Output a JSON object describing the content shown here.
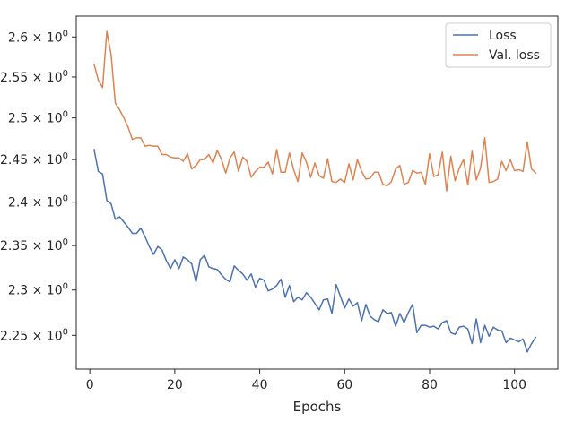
{
  "chart_data": {
    "type": "line",
    "xlabel": "Epochs",
    "ylabel": "",
    "yscale": "log",
    "xlim": [
      -3.2,
      110.2
    ],
    "ylim": [
      2.2135,
      2.6264
    ],
    "grid": false,
    "legend_placement": "top-right",
    "x_ticks": [
      0,
      20,
      40,
      60,
      80,
      100
    ],
    "x_tick_labels": [
      "0",
      "20",
      "40",
      "60",
      "80",
      "100"
    ],
    "y_ticks": [
      2.25,
      2.3,
      2.35,
      2.4,
      2.45,
      2.5,
      2.55,
      2.6
    ],
    "y_tick_labels": [
      {
        "mantissa": "2.25",
        "base": "10",
        "exp": "0"
      },
      {
        "mantissa": "2.3",
        "base": "10",
        "exp": "0"
      },
      {
        "mantissa": "2.35",
        "base": "10",
        "exp": "0"
      },
      {
        "mantissa": "2.4",
        "base": "10",
        "exp": "0"
      },
      {
        "mantissa": "2.45",
        "base": "10",
        "exp": "0"
      },
      {
        "mantissa": "2.5",
        "base": "10",
        "exp": "0"
      },
      {
        "mantissa": "2.55",
        "base": "10",
        "exp": "0"
      },
      {
        "mantissa": "2.6",
        "base": "10",
        "exp": "0"
      }
    ],
    "series": [
      {
        "name": "Loss",
        "color": "#4c72b0",
        "start_x": 1,
        "values": [
          2.462,
          2.436,
          2.433,
          2.402,
          2.398,
          2.38,
          2.383,
          2.377,
          2.371,
          2.364,
          2.364,
          2.37,
          2.36,
          2.349,
          2.34,
          2.349,
          2.345,
          2.333,
          2.324,
          2.334,
          2.324,
          2.337,
          2.334,
          2.329,
          2.309,
          2.334,
          2.339,
          2.326,
          2.324,
          2.323,
          2.317,
          2.312,
          2.309,
          2.327,
          2.322,
          2.318,
          2.311,
          2.318,
          2.303,
          2.313,
          2.311,
          2.299,
          2.301,
          2.305,
          2.312,
          2.292,
          2.305,
          2.287,
          2.292,
          2.289,
          2.297,
          2.292,
          2.285,
          2.278,
          2.289,
          2.29,
          2.274,
          2.306,
          2.293,
          2.28,
          2.29,
          2.282,
          2.286,
          2.266,
          2.284,
          2.271,
          2.267,
          2.265,
          2.278,
          2.274,
          2.275,
          2.26,
          2.274,
          2.264,
          2.275,
          2.284,
          2.253,
          2.261,
          2.261,
          2.259,
          2.26,
          2.257,
          2.264,
          2.266,
          2.253,
          2.251,
          2.259,
          2.26,
          2.257,
          2.241,
          2.268,
          2.242,
          2.261,
          2.249,
          2.259,
          2.256,
          2.255,
          2.242,
          2.247,
          2.245,
          2.243,
          2.246,
          2.232,
          2.241,
          2.248
        ]
      },
      {
        "name": "Val. loss",
        "color": "#dd8452",
        "start_x": 1,
        "values": [
          2.566,
          2.546,
          2.537,
          2.607,
          2.578,
          2.518,
          2.51,
          2.5,
          2.489,
          2.474,
          2.476,
          2.476,
          2.466,
          2.467,
          2.466,
          2.466,
          2.456,
          2.456,
          2.453,
          2.452,
          2.452,
          2.448,
          2.457,
          2.439,
          2.443,
          2.45,
          2.45,
          2.456,
          2.446,
          2.461,
          2.45,
          2.434,
          2.452,
          2.459,
          2.436,
          2.453,
          2.448,
          2.429,
          2.436,
          2.441,
          2.441,
          2.447,
          2.433,
          2.462,
          2.435,
          2.435,
          2.458,
          2.438,
          2.424,
          2.458,
          2.447,
          2.429,
          2.446,
          2.431,
          2.428,
          2.451,
          2.424,
          2.423,
          2.427,
          2.423,
          2.445,
          2.426,
          2.45,
          2.436,
          2.427,
          2.428,
          2.435,
          2.435,
          2.421,
          2.419,
          2.424,
          2.439,
          2.443,
          2.421,
          2.423,
          2.437,
          2.434,
          2.435,
          2.421,
          2.457,
          2.43,
          2.432,
          2.459,
          2.413,
          2.454,
          2.425,
          2.44,
          2.45,
          2.42,
          2.46,
          2.426,
          2.44,
          2.476,
          2.423,
          2.424,
          2.427,
          2.448,
          2.437,
          2.45,
          2.437,
          2.438,
          2.436,
          2.471,
          2.439,
          2.434
        ]
      }
    ]
  }
}
